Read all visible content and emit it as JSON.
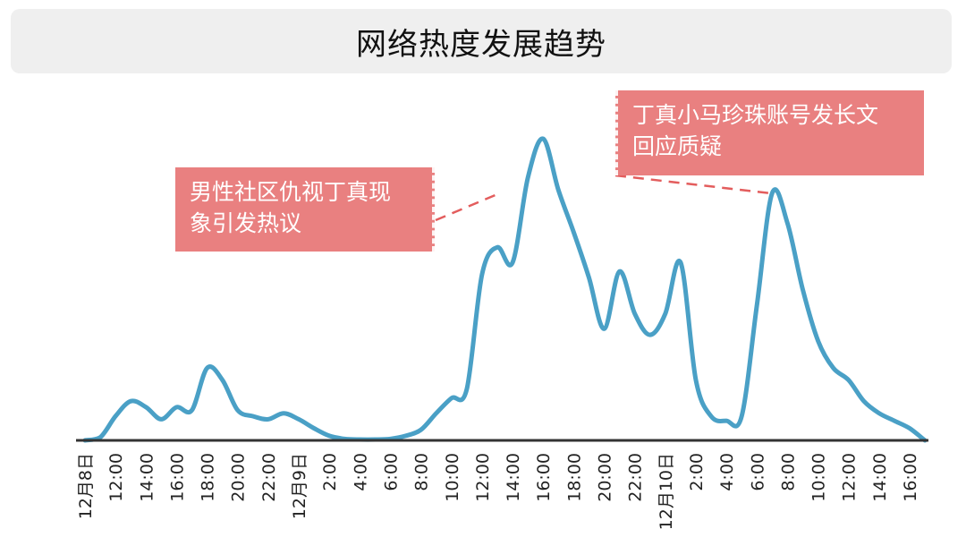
{
  "title": "网络热度发展趋势",
  "colors": {
    "line": "#4aa0c6",
    "axis": "#333333",
    "callout_bg": "#e98080",
    "title_bg": "#efefef"
  },
  "annotations": [
    {
      "text_line1": "男性社区仇视丁真现",
      "text_line2": "象引发热议",
      "at_index": 14
    },
    {
      "text_line1": "丁真小马珍珠账号发长文",
      "text_line2": "回应质疑",
      "at_index": 24
    }
  ],
  "chart_data": {
    "type": "line",
    "title": "网络热度发展趋势",
    "xlabel": "",
    "ylabel": "",
    "grid": false,
    "legend": "none",
    "ylim": [
      0,
      100
    ],
    "x": [
      "12月8日",
      "12:00",
      "14:00",
      "16:00",
      "18:00",
      "20:00",
      "22:00",
      "12月9日",
      "2:00",
      "4:00",
      "6:00",
      "8:00",
      "10:00",
      "12:00",
      "14:00",
      "16:00",
      "18:00",
      "20:00",
      "22:00",
      "12月10日",
      "2:00",
      "4:00",
      "6:00",
      "8:00",
      "10:00",
      "12:00",
      "14:00",
      "16:00"
    ],
    "series": [
      {
        "name": "",
        "points": [
          [
            0,
            0
          ],
          [
            0.5,
            1
          ],
          [
            1,
            8
          ],
          [
            1.5,
            13
          ],
          [
            2,
            11
          ],
          [
            2.5,
            7
          ],
          [
            3,
            11
          ],
          [
            3.5,
            10
          ],
          [
            4,
            24
          ],
          [
            4.5,
            20
          ],
          [
            5,
            10
          ],
          [
            5.5,
            8
          ],
          [
            6,
            7
          ],
          [
            6.5,
            9
          ],
          [
            7,
            7
          ],
          [
            7.5,
            4
          ],
          [
            8,
            1.5
          ],
          [
            8.5,
            0.5
          ],
          [
            9,
            0.3
          ],
          [
            9.5,
            0.3
          ],
          [
            10,
            0.5
          ],
          [
            10.5,
            1.5
          ],
          [
            11,
            3.5
          ],
          [
            11.5,
            9
          ],
          [
            12,
            14
          ],
          [
            12.5,
            17
          ],
          [
            13,
            55
          ],
          [
            13.5,
            64
          ],
          [
            14,
            59
          ],
          [
            14.5,
            87
          ],
          [
            15,
            100
          ],
          [
            15.5,
            83
          ],
          [
            16,
            69
          ],
          [
            16.5,
            54
          ],
          [
            17,
            37
          ],
          [
            17.5,
            56
          ],
          [
            18,
            42
          ],
          [
            18.5,
            35
          ],
          [
            19,
            42
          ],
          [
            19.5,
            59
          ],
          [
            20,
            20
          ],
          [
            20.5,
            8
          ],
          [
            21,
            6.5
          ],
          [
            21.5,
            8
          ],
          [
            22,
            45
          ],
          [
            22.5,
            82
          ],
          [
            23,
            72
          ],
          [
            23.5,
            50
          ],
          [
            24,
            33
          ],
          [
            24.5,
            24
          ],
          [
            25,
            20
          ],
          [
            25.5,
            13
          ],
          [
            26,
            9
          ],
          [
            26.5,
            6.5
          ],
          [
            27,
            4
          ],
          [
            27.5,
            0
          ]
        ]
      }
    ]
  }
}
